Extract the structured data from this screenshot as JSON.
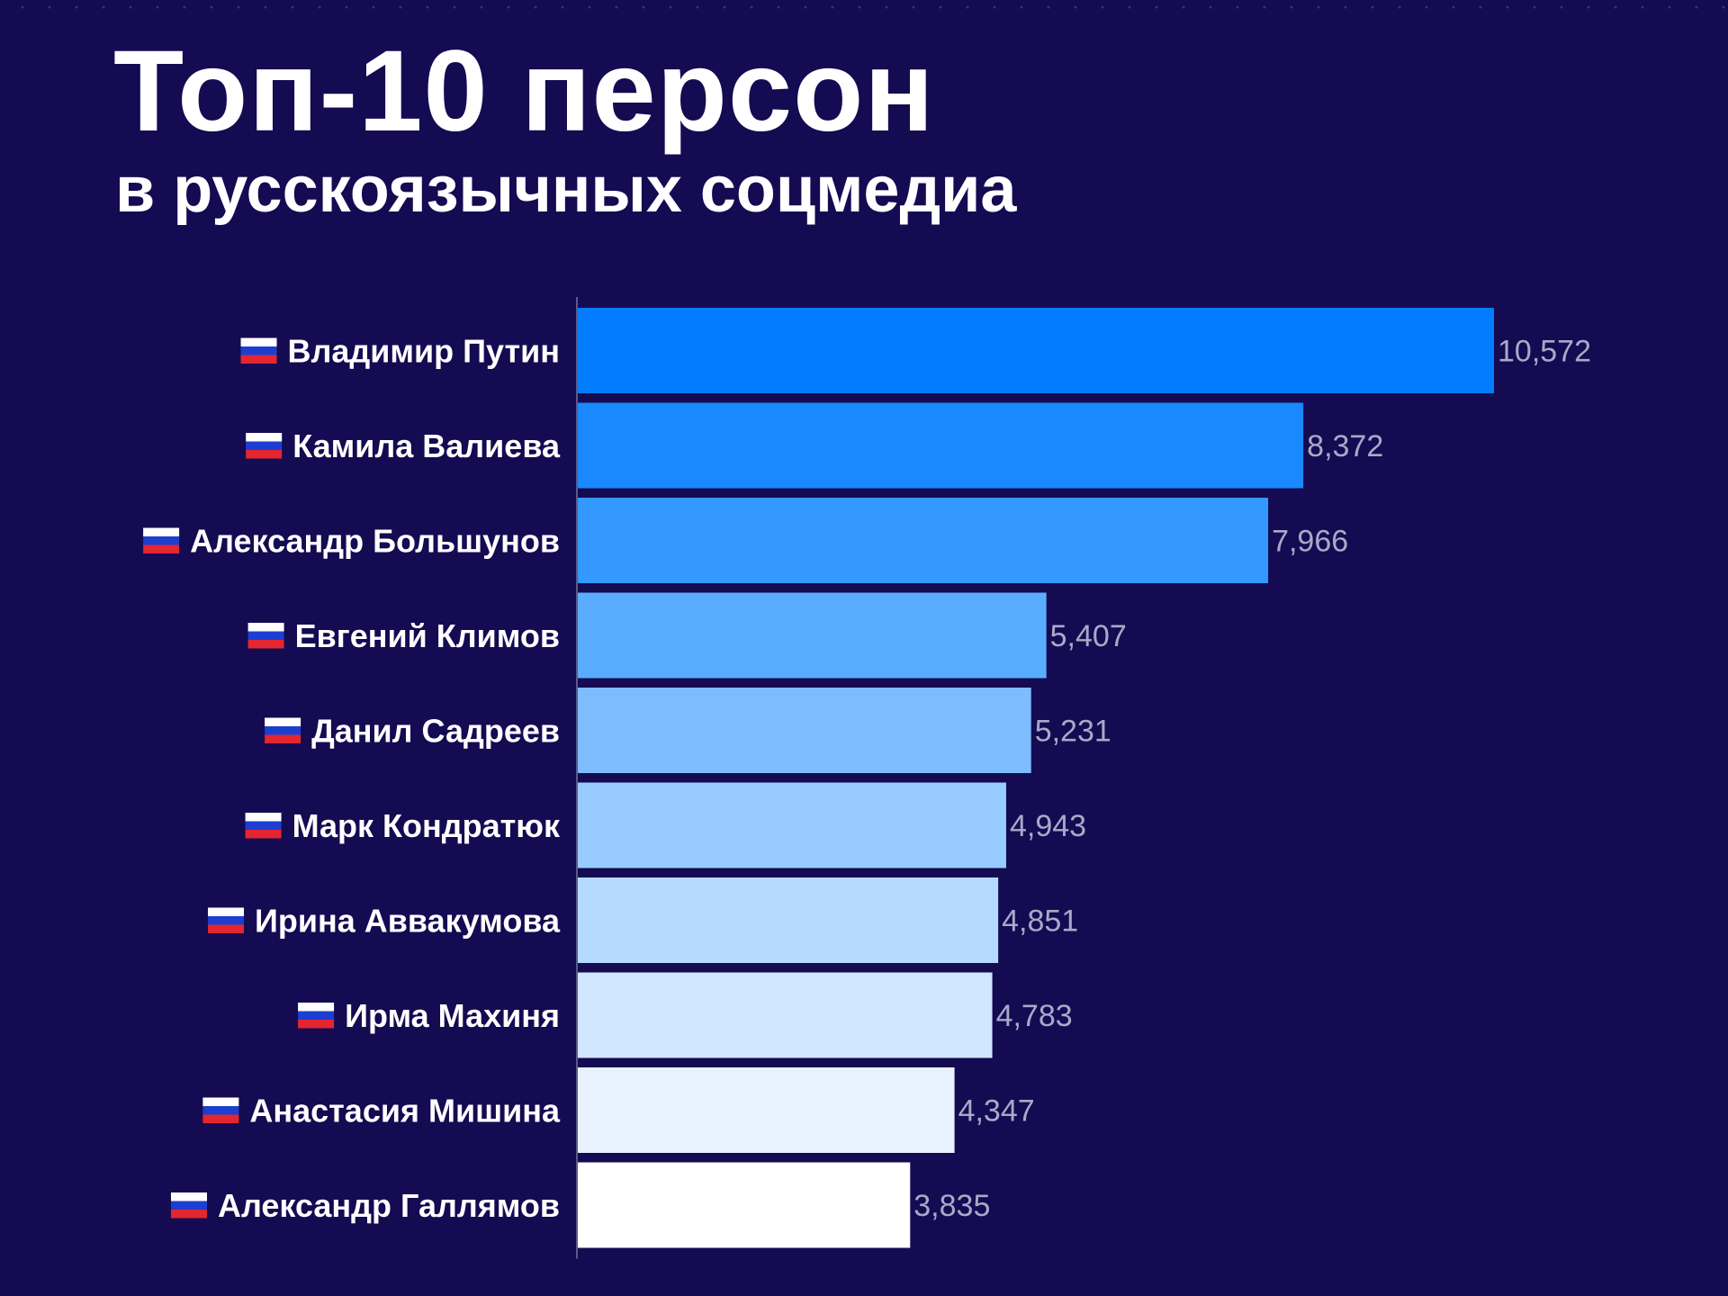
{
  "header": {
    "title": "Топ-10 персон",
    "subtitle": "в русскоязычных соцмедиа"
  },
  "chart_data": {
    "type": "bar",
    "orientation": "horizontal",
    "title": "Топ-10 персон",
    "subtitle": "в русскоязычных соцмедиа",
    "categories": [
      "Владимир Путин",
      "Камила Валиева",
      "Александр Большунов",
      "Евгений Климов",
      "Данил Садреев",
      "Марк Кондратюк",
      "Ирина Аввакумова",
      "Ирма Махиня",
      "Анастасия Мишина",
      "Александр Галлямов"
    ],
    "values": [
      10572,
      8372,
      7966,
      5407,
      5231,
      4943,
      4851,
      4783,
      4347,
      3835
    ],
    "value_labels": [
      "10,572",
      "8,372",
      "7,966",
      "5,407",
      "5,231",
      "4,943",
      "4,851",
      "4,783",
      "4,347",
      "3,835"
    ],
    "flag_icon": "russia-flag-icon",
    "bar_colors": [
      "#037cff",
      "#1a89ff",
      "#3398ff",
      "#5aacff",
      "#7dbdff",
      "#98cbff",
      "#b6d9ff",
      "#d1e6ff",
      "#e9f3ff",
      "#ffffff"
    ],
    "grid": false,
    "legend": "none"
  }
}
